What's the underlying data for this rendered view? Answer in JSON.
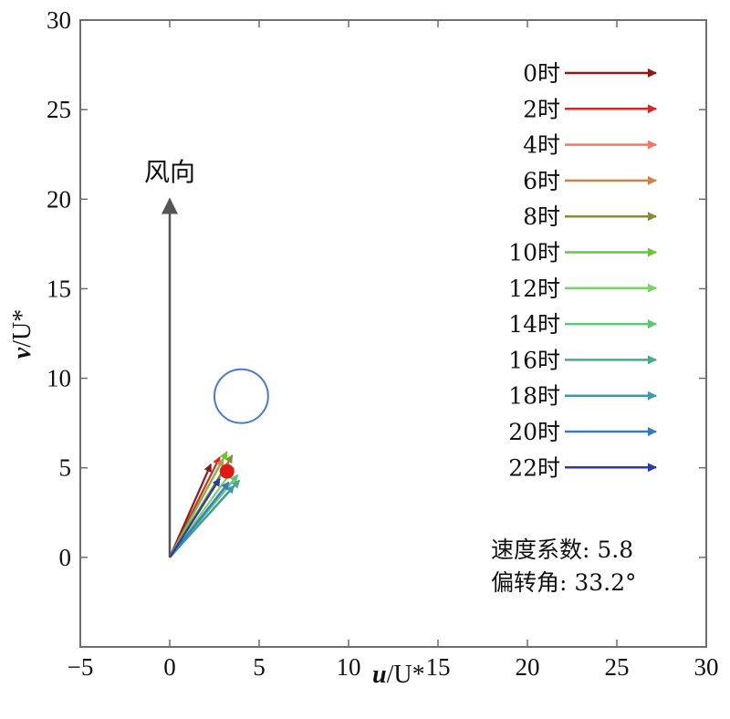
{
  "chart_data": {
    "type": "scatter",
    "xlabel_var": "u",
    "xlabel_rest": "/U*",
    "ylabel_var": "v",
    "ylabel_rest": "/U*",
    "xlim": [
      -5,
      30
    ],
    "ylim": [
      -5,
      30
    ],
    "xticks": [
      -5,
      0,
      5,
      10,
      15,
      20,
      25,
      30
    ],
    "yticks": [
      0,
      5,
      10,
      15,
      20,
      25,
      30
    ],
    "xtick_labels": [
      "−5",
      "0",
      "5",
      "10",
      "15",
      "20",
      "25",
      "30"
    ],
    "ytick_labels": [
      "0",
      "5",
      "10",
      "15",
      "20",
      "25",
      "30"
    ],
    "grid": false,
    "wind_direction": {
      "label": "风向",
      "from": [
        0,
        0
      ],
      "to": [
        0,
        20
      ],
      "color": "#555555"
    },
    "series": [
      {
        "name": "0时",
        "color": "#8b1a1a",
        "vector": [
          2.3,
          5.2
        ]
      },
      {
        "name": "2时",
        "color": "#d42a2a",
        "vector": [
          2.8,
          5.6
        ]
      },
      {
        "name": "4时",
        "color": "#f07860",
        "vector": [
          3.0,
          5.5
        ]
      },
      {
        "name": "6时",
        "color": "#c8864a",
        "vector": [
          3.3,
          5.3
        ]
      },
      {
        "name": "8时",
        "color": "#8a8a3a",
        "vector": [
          3.5,
          5.7
        ]
      },
      {
        "name": "10时",
        "color": "#6cc43c",
        "vector": [
          3.2,
          5.9
        ]
      },
      {
        "name": "12时",
        "color": "#7ad46a",
        "vector": [
          3.6,
          5.0
        ]
      },
      {
        "name": "14时",
        "color": "#5cc870",
        "vector": [
          3.8,
          4.6
        ]
      },
      {
        "name": "16时",
        "color": "#4aaa8a",
        "vector": [
          3.9,
          4.3
        ]
      },
      {
        "name": "18时",
        "color": "#3e9aa6",
        "vector": [
          3.6,
          4.0
        ]
      },
      {
        "name": "20时",
        "color": "#3a78c0",
        "vector": [
          3.3,
          4.2
        ]
      },
      {
        "name": "22时",
        "color": "#2a3aa8",
        "vector": [
          2.8,
          4.4
        ]
      }
    ],
    "mean_point": {
      "x": 3.2,
      "y": 4.8,
      "color": "#e01818"
    },
    "circle": {
      "cx": 4.0,
      "cy": 9.0,
      "r": 1.5,
      "color": "#4a7ad0"
    },
    "annotations": [
      {
        "name": "speed-coefficient",
        "text": "速度系数: 5.8"
      },
      {
        "name": "deflection-angle",
        "text": "偏转角: 33.2°"
      }
    ]
  }
}
